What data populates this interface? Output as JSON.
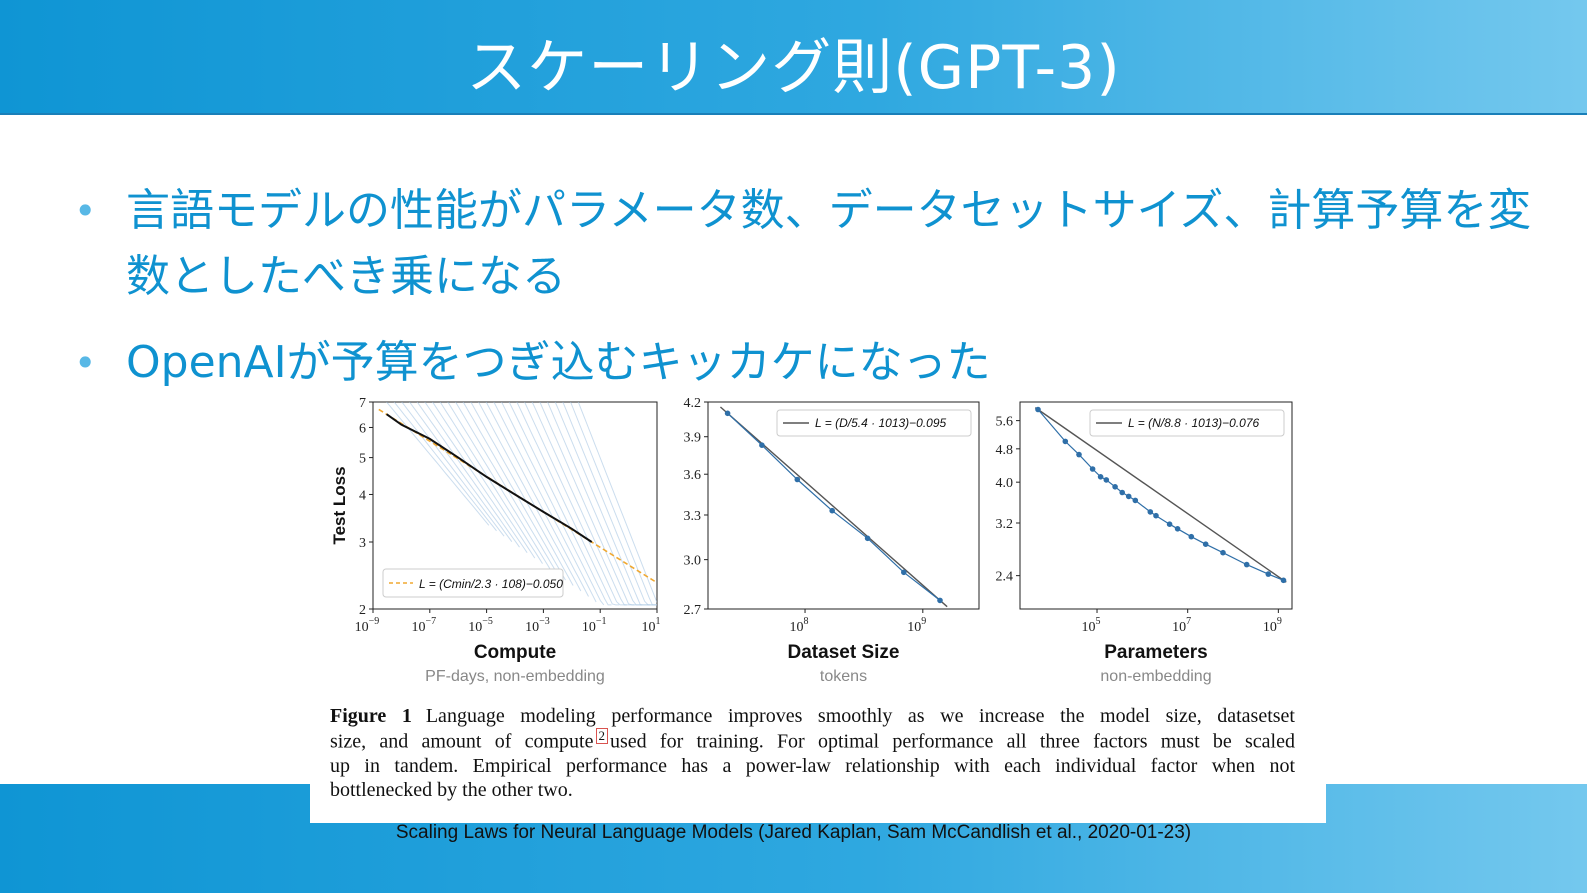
{
  "slide": {
    "title": "スケーリング則(GPT-3)",
    "bullets": [
      "言語モデルの性能がパラメータ数、データセットサイズ、計算予算を変数としたべき乗になる",
      "OpenAIが予算をつぎ込むキッカケになった"
    ],
    "bullet_marker": "•",
    "citation": "Scaling Laws for Neural Language Models (Jared Kaplan, Sam McCandlish et al., 2020-01-23)"
  },
  "figure": {
    "caption_label": "Figure 1",
    "caption_lines": [
      "Language modeling performance improves smoothly as we increase the model size, datasetset",
      "size, and amount of compute",
      "used for training.  For optimal performance all three factors must be scaled",
      "up in tandem.  Empirical performance has a power-law relationship with each individual factor when not",
      "bottlenecked by the other two."
    ],
    "footnote_mark": "2",
    "colors": {
      "fit_compute": "#f0a830",
      "fit_line": "#555555",
      "points": "#2f6fa8",
      "curves": "#a9c7e2",
      "envelope": "#111111"
    }
  },
  "chart_data": [
    {
      "type": "line",
      "ylabel": "Test Loss",
      "xlabel": "Compute",
      "xsublabel": "PF-days, non-embedding",
      "xscale": "log",
      "yscale": "log",
      "xlim": [
        1e-09,
        10
      ],
      "ylim": [
        2,
        7
      ],
      "xticks": [
        "10−9",
        "10−7",
        "10−5",
        "10−3",
        "10−1",
        "101"
      ],
      "yticks": [
        "2",
        "3",
        "4",
        "5",
        "6",
        "7"
      ],
      "legend": "L = (Cmin/2.3 · 108)−0.050",
      "legend_position": "lower-left",
      "fit": {
        "C0": 230000000.0,
        "alpha": 0.05
      },
      "frontier": [
        [
          3e-09,
          6.5
        ],
        [
          1e-08,
          6.1
        ],
        [
          1e-07,
          5.6
        ],
        [
          1e-06,
          5.0
        ],
        [
          1e-05,
          4.45
        ],
        [
          0.0001,
          4.0
        ],
        [
          0.001,
          3.6
        ],
        [
          0.01,
          3.25
        ],
        [
          0.05,
          3.0
        ]
      ]
    },
    {
      "type": "line",
      "xlabel": "Dataset Size",
      "xsublabel": "tokens",
      "xscale": "log",
      "yscale": "log",
      "xlim": [
        15000000.0,
        3000000000.0
      ],
      "ylim": [
        2.7,
        4.2
      ],
      "xticks": [
        "108",
        "109"
      ],
      "yticks": [
        "2.7",
        "3.0",
        "3.3",
        "3.6",
        "3.9",
        "4.2"
      ],
      "legend": "L = (D/5.4 · 1013)−0.095",
      "legend_position": "top-right",
      "fit": {
        "D0": 54000000000000.0,
        "alpha": 0.095
      },
      "points": [
        [
          22000000.0,
          4.1
        ],
        [
          43000000.0,
          3.83
        ],
        [
          86000000.0,
          3.56
        ],
        [
          170000000.0,
          3.33
        ],
        [
          340000000.0,
          3.14
        ],
        [
          690000000.0,
          2.92
        ],
        [
          1400000000.0,
          2.75
        ]
      ]
    },
    {
      "type": "line",
      "xlabel": "Parameters",
      "xsublabel": "non-embedding",
      "xscale": "log",
      "yscale": "log",
      "xlim": [
        2000.0,
        2000000000.0
      ],
      "ylim": [
        2.0,
        6.2
      ],
      "xticks": [
        "105",
        "107",
        "109"
      ],
      "yticks": [
        "2.4",
        "3.2",
        "4.0",
        "4.8",
        "5.6"
      ],
      "legend": "L = (N/8.8 · 1013)−0.076",
      "legend_position": "top-right",
      "fit": {
        "N0": 88000000000000.0,
        "alpha": 0.076
      },
      "points": [
        [
          5000.0,
          5.95
        ],
        [
          20000.0,
          5.0
        ],
        [
          40000.0,
          4.65
        ],
        [
          80000.0,
          4.3
        ],
        [
          120000.0,
          4.12
        ],
        [
          160000.0,
          4.05
        ],
        [
          250000.0,
          3.9
        ],
        [
          360000.0,
          3.78
        ],
        [
          500000.0,
          3.7
        ],
        [
          700000.0,
          3.62
        ],
        [
          1500000.0,
          3.4
        ],
        [
          2000000.0,
          3.33
        ],
        [
          4000000.0,
          3.18
        ],
        [
          6000000.0,
          3.1
        ],
        [
          12000000.0,
          2.97
        ],
        [
          25000000.0,
          2.85
        ],
        [
          60000000.0,
          2.72
        ],
        [
          200000000.0,
          2.55
        ],
        [
          600000000.0,
          2.42
        ],
        [
          1300000000.0,
          2.34
        ]
      ]
    }
  ]
}
